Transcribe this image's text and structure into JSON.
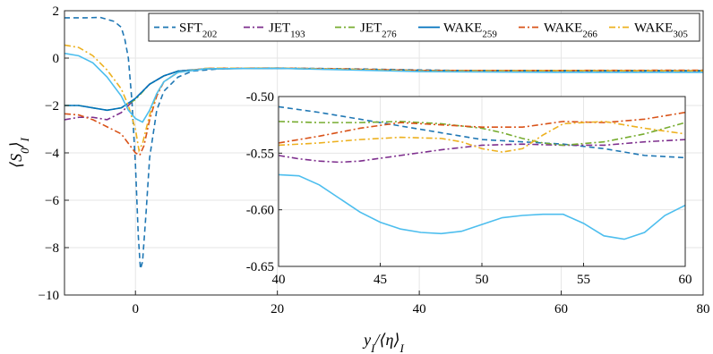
{
  "chart_data": {
    "type": "line",
    "main": {
      "xlabel": "y_I/⟨η⟩_I",
      "ylabel": "⟨S_0⟩_I",
      "xlim": [
        -10,
        80
      ],
      "ylim": [
        -10,
        2
      ],
      "xticks": [
        0,
        20,
        40,
        60,
        80
      ],
      "yticks": [
        2,
        0,
        -2,
        -4,
        -6,
        -8,
        -10
      ],
      "xtick_labels": [
        "0",
        "20",
        "40",
        "60",
        "80"
      ],
      "ytick_labels": [
        "2",
        "0",
        "−2",
        "−4",
        "−6",
        "−8",
        "−10"
      ],
      "grid": true
    },
    "inset": {
      "xlim": [
        40,
        60
      ],
      "ylim": [
        -0.65,
        -0.5
      ],
      "xticks": [
        40,
        45,
        50,
        55,
        60
      ],
      "yticks": [
        -0.5,
        -0.55,
        -0.6,
        -0.65
      ],
      "xtick_labels": [
        "40",
        "45",
        "50",
        "55",
        "60"
      ],
      "ytick_labels": [
        "-0.50",
        "-0.55",
        "-0.60",
        "-0.65"
      ],
      "grid": true
    },
    "legend": {
      "placement": "top-right",
      "orientation": "horizontal"
    },
    "series": [
      {
        "name": "SFT",
        "sub": "202",
        "color": "#1f77b4",
        "dash": "dashed",
        "main": [
          [
            -10,
            1.7
          ],
          [
            -7,
            1.7
          ],
          [
            -5,
            1.72
          ],
          [
            -3,
            1.55
          ],
          [
            -2,
            1.3
          ],
          [
            -1.5,
            0.8
          ],
          [
            -1,
            0
          ],
          [
            -0.5,
            -1.8
          ],
          [
            0,
            -4.5
          ],
          [
            0.4,
            -7.5
          ],
          [
            0.7,
            -8.9
          ],
          [
            1,
            -8.6
          ],
          [
            1.5,
            -6.5
          ],
          [
            2,
            -4.2
          ],
          [
            3,
            -2.2
          ],
          [
            4,
            -1.4
          ],
          [
            6,
            -0.8
          ],
          [
            8,
            -0.55
          ],
          [
            12,
            -0.45
          ],
          [
            20,
            -0.42
          ],
          [
            30,
            -0.45
          ],
          [
            40,
            -0.5
          ],
          [
            50,
            -0.54
          ],
          [
            60,
            -0.55
          ],
          [
            70,
            -0.56
          ],
          [
            80,
            -0.56
          ]
        ],
        "inset": [
          [
            40,
            -0.509
          ],
          [
            42,
            -0.514
          ],
          [
            44,
            -0.52
          ],
          [
            46,
            -0.526
          ],
          [
            48,
            -0.532
          ],
          [
            50,
            -0.538
          ],
          [
            52,
            -0.54
          ],
          [
            54,
            -0.542
          ],
          [
            56,
            -0.546
          ],
          [
            58,
            -0.552
          ],
          [
            60,
            -0.554
          ]
        ]
      },
      {
        "name": "JET",
        "sub": "193",
        "color": "#7e2f8e",
        "dash": "dashdot",
        "main": [
          [
            -10,
            -2.6
          ],
          [
            -8,
            -2.5
          ],
          [
            -6,
            -2.5
          ],
          [
            -4,
            -2.6
          ],
          [
            -2,
            -2.3
          ],
          [
            0,
            -1.7
          ],
          [
            2,
            -1.1
          ],
          [
            4,
            -0.75
          ],
          [
            6,
            -0.55
          ],
          [
            10,
            -0.45
          ],
          [
            20,
            -0.43
          ],
          [
            30,
            -0.47
          ],
          [
            40,
            -0.55
          ],
          [
            60,
            -0.54
          ],
          [
            80,
            -0.55
          ]
        ],
        "inset": [
          [
            40,
            -0.552
          ],
          [
            41,
            -0.555
          ],
          [
            42,
            -0.557
          ],
          [
            43,
            -0.558
          ],
          [
            44,
            -0.557
          ],
          [
            46,
            -0.552
          ],
          [
            48,
            -0.547
          ],
          [
            50,
            -0.543
          ],
          [
            52,
            -0.542
          ],
          [
            54,
            -0.543
          ],
          [
            56,
            -0.543
          ],
          [
            58,
            -0.54
          ],
          [
            60,
            -0.538
          ]
        ]
      },
      {
        "name": "JET",
        "sub": "276",
        "color": "#77ac30",
        "dash": "dashdot",
        "main": [
          [
            -10,
            -2.0
          ],
          [
            -8,
            -2.0
          ],
          [
            -6,
            -2.1
          ],
          [
            -4,
            -2.2
          ],
          [
            -2,
            -2.1
          ],
          [
            0,
            -1.75
          ],
          [
            2,
            -1.1
          ],
          [
            4,
            -0.75
          ],
          [
            6,
            -0.55
          ],
          [
            10,
            -0.45
          ],
          [
            20,
            -0.43
          ],
          [
            30,
            -0.48
          ],
          [
            40,
            -0.52
          ],
          [
            60,
            -0.52
          ],
          [
            80,
            -0.53
          ]
        ],
        "inset": [
          [
            40,
            -0.522
          ],
          [
            42,
            -0.523
          ],
          [
            44,
            -0.523
          ],
          [
            46,
            -0.522
          ],
          [
            48,
            -0.524
          ],
          [
            50,
            -0.528
          ],
          [
            51,
            -0.532
          ],
          [
            52,
            -0.537
          ],
          [
            53,
            -0.541
          ],
          [
            54,
            -0.543
          ],
          [
            56,
            -0.54
          ],
          [
            58,
            -0.533
          ],
          [
            60,
            -0.523
          ]
        ]
      },
      {
        "name": "WAKE",
        "sub": "259",
        "color": "#0072bd",
        "dash": "solid",
        "main": [
          [
            -10,
            -2.0
          ],
          [
            -8,
            -2.0
          ],
          [
            -6,
            -2.1
          ],
          [
            -4,
            -2.2
          ],
          [
            -2,
            -2.1
          ],
          [
            0,
            -1.7
          ],
          [
            2,
            -1.1
          ],
          [
            4,
            -0.75
          ],
          [
            6,
            -0.55
          ],
          [
            10,
            -0.45
          ],
          [
            20,
            -0.43
          ],
          [
            30,
            -0.48
          ],
          [
            40,
            -0.52
          ],
          [
            60,
            -0.53
          ],
          [
            80,
            -0.53
          ]
        ]
      },
      {
        "name": "WAKE",
        "sub": "266",
        "color": "#d95319",
        "dash": "dashdot",
        "main": [
          [
            -10,
            -2.35
          ],
          [
            -8,
            -2.4
          ],
          [
            -6,
            -2.6
          ],
          [
            -4,
            -2.9
          ],
          [
            -2,
            -3.2
          ],
          [
            -1,
            -3.6
          ],
          [
            0,
            -4.0
          ],
          [
            0.6,
            -4.1
          ],
          [
            1.2,
            -3.7
          ],
          [
            2,
            -2.6
          ],
          [
            3,
            -1.6
          ],
          [
            4,
            -1.0
          ],
          [
            6,
            -0.6
          ],
          [
            10,
            -0.43
          ],
          [
            20,
            -0.42
          ],
          [
            30,
            -0.46
          ],
          [
            40,
            -0.52
          ],
          [
            60,
            -0.52
          ],
          [
            80,
            -0.51
          ]
        ],
        "inset": [
          [
            40,
            -0.541
          ],
          [
            42,
            -0.535
          ],
          [
            44,
            -0.528
          ],
          [
            46,
            -0.523
          ],
          [
            48,
            -0.525
          ],
          [
            50,
            -0.527
          ],
          [
            52,
            -0.527
          ],
          [
            54,
            -0.522
          ],
          [
            56,
            -0.523
          ],
          [
            58,
            -0.52
          ],
          [
            60,
            -0.514
          ]
        ]
      },
      {
        "name": "WAKE",
        "sub": "305",
        "color": "#edb120",
        "dash": "dashdot",
        "main": [
          [
            -10,
            0.55
          ],
          [
            -8,
            0.45
          ],
          [
            -6,
            0.1
          ],
          [
            -4,
            -0.5
          ],
          [
            -2,
            -1.3
          ],
          [
            -1,
            -2.0
          ],
          [
            0,
            -3.0
          ],
          [
            0.5,
            -3.9
          ],
          [
            1,
            -3.6
          ],
          [
            2,
            -2.4
          ],
          [
            3,
            -1.5
          ],
          [
            4,
            -1.0
          ],
          [
            6,
            -0.6
          ],
          [
            10,
            -0.43
          ],
          [
            20,
            -0.42
          ],
          [
            30,
            -0.47
          ],
          [
            40,
            -0.54
          ],
          [
            60,
            -0.53
          ],
          [
            80,
            -0.54
          ]
        ],
        "inset": [
          [
            40,
            -0.543
          ],
          [
            42,
            -0.541
          ],
          [
            44,
            -0.538
          ],
          [
            46,
            -0.536
          ],
          [
            48,
            -0.537
          ],
          [
            49,
            -0.54
          ],
          [
            50,
            -0.546
          ],
          [
            51,
            -0.549
          ],
          [
            52,
            -0.546
          ],
          [
            53,
            -0.534
          ],
          [
            54,
            -0.524
          ],
          [
            56,
            -0.522
          ],
          [
            58,
            -0.528
          ],
          [
            60,
            -0.533
          ]
        ]
      },
      {
        "name": "",
        "sub": "",
        "color": "#4dbeee",
        "dash": "solid",
        "legend": false,
        "main": [
          [
            -10,
            0.2
          ],
          [
            -8,
            0.1
          ],
          [
            -6,
            -0.2
          ],
          [
            -4,
            -0.8
          ],
          [
            -2,
            -1.6
          ],
          [
            -1,
            -2.2
          ],
          [
            0,
            -2.55
          ],
          [
            1,
            -2.7
          ],
          [
            2,
            -2.2
          ],
          [
            3,
            -1.5
          ],
          [
            4,
            -1.0
          ],
          [
            6,
            -0.6
          ],
          [
            10,
            -0.45
          ],
          [
            20,
            -0.43
          ],
          [
            30,
            -0.5
          ],
          [
            40,
            -0.57
          ],
          [
            60,
            -0.6
          ],
          [
            80,
            -0.6
          ]
        ],
        "inset": [
          [
            40,
            -0.569
          ],
          [
            41,
            -0.57
          ],
          [
            42,
            -0.578
          ],
          [
            43,
            -0.59
          ],
          [
            44,
            -0.602
          ],
          [
            45,
            -0.611
          ],
          [
            46,
            -0.617
          ],
          [
            47,
            -0.62
          ],
          [
            48,
            -0.621
          ],
          [
            49,
            -0.619
          ],
          [
            50,
            -0.613
          ],
          [
            51,
            -0.607
          ],
          [
            52,
            -0.605
          ],
          [
            53,
            -0.604
          ],
          [
            54,
            -0.604
          ],
          [
            55,
            -0.612
          ],
          [
            56,
            -0.623
          ],
          [
            57,
            -0.626
          ],
          [
            58,
            -0.62
          ],
          [
            59,
            -0.605
          ],
          [
            60,
            -0.596
          ]
        ]
      }
    ]
  }
}
